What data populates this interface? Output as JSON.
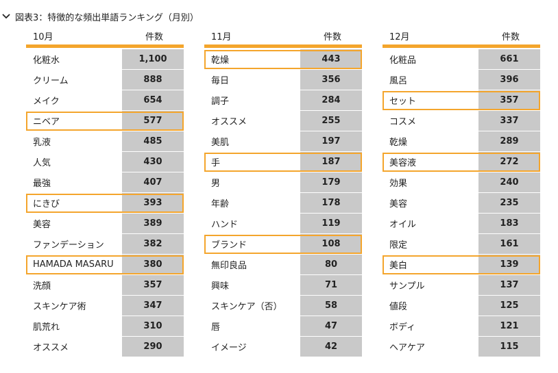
{
  "title": "図表3：特徴的な頻出単語ランキング（月別）",
  "tables": [
    {
      "month": "10月",
      "count_label": "件数",
      "rows": [
        {
          "word": "化粧水",
          "count": "1,100",
          "hl": false
        },
        {
          "word": "クリーム",
          "count": "888",
          "hl": false
        },
        {
          "word": "メイク",
          "count": "654",
          "hl": false
        },
        {
          "word": "ニベア",
          "count": "577",
          "hl": true
        },
        {
          "word": "乳液",
          "count": "485",
          "hl": false
        },
        {
          "word": "人気",
          "count": "430",
          "hl": false
        },
        {
          "word": "最強",
          "count": "407",
          "hl": false
        },
        {
          "word": "にきび",
          "count": "393",
          "hl": true
        },
        {
          "word": "美容",
          "count": "389",
          "hl": false
        },
        {
          "word": "ファンデーション",
          "count": "382",
          "hl": false
        },
        {
          "word": "HAMADA MASARU",
          "count": "380",
          "hl": true
        },
        {
          "word": "洗顔",
          "count": "357",
          "hl": false
        },
        {
          "word": "スキンケア術",
          "count": "347",
          "hl": false
        },
        {
          "word": "肌荒れ",
          "count": "310",
          "hl": false
        },
        {
          "word": "オススメ",
          "count": "290",
          "hl": false
        }
      ]
    },
    {
      "month": "11月",
      "count_label": "件数",
      "rows": [
        {
          "word": "乾燥",
          "count": "443",
          "hl": true
        },
        {
          "word": "毎日",
          "count": "356",
          "hl": false
        },
        {
          "word": "調子",
          "count": "284",
          "hl": false
        },
        {
          "word": "オススメ",
          "count": "255",
          "hl": false
        },
        {
          "word": "美肌",
          "count": "197",
          "hl": false
        },
        {
          "word": "手",
          "count": "187",
          "hl": true
        },
        {
          "word": "男",
          "count": "179",
          "hl": false
        },
        {
          "word": "年齢",
          "count": "178",
          "hl": false
        },
        {
          "word": "ハンド",
          "count": "119",
          "hl": false
        },
        {
          "word": "ブランド",
          "count": "108",
          "hl": true
        },
        {
          "word": "無印良品",
          "count": "80",
          "hl": false
        },
        {
          "word": "興味",
          "count": "71",
          "hl": false
        },
        {
          "word": "スキンケア（否）",
          "count": "58",
          "hl": false
        },
        {
          "word": "唇",
          "count": "47",
          "hl": false
        },
        {
          "word": "イメージ",
          "count": "42",
          "hl": false
        }
      ]
    },
    {
      "month": "12月",
      "count_label": "件数",
      "rows": [
        {
          "word": "化粧品",
          "count": "661",
          "hl": false
        },
        {
          "word": "風呂",
          "count": "396",
          "hl": false
        },
        {
          "word": "セット",
          "count": "357",
          "hl": true
        },
        {
          "word": "コスメ",
          "count": "337",
          "hl": false
        },
        {
          "word": "乾燥",
          "count": "289",
          "hl": false
        },
        {
          "word": "美容液",
          "count": "272",
          "hl": true
        },
        {
          "word": "効果",
          "count": "240",
          "hl": false
        },
        {
          "word": "美容",
          "count": "235",
          "hl": false
        },
        {
          "word": "オイル",
          "count": "183",
          "hl": false
        },
        {
          "word": "限定",
          "count": "161",
          "hl": false
        },
        {
          "word": "美白",
          "count": "139",
          "hl": true
        },
        {
          "word": "サンプル",
          "count": "137",
          "hl": false
        },
        {
          "word": "値段",
          "count": "125",
          "hl": false
        },
        {
          "word": "ボディ",
          "count": "121",
          "hl": false
        },
        {
          "word": "ヘアケア",
          "count": "115",
          "hl": false
        }
      ]
    }
  ],
  "colors": {
    "accent": "#f4a52c",
    "count_bg": "#c9c9c9"
  },
  "icons": {
    "title": "chevron-down-icon"
  }
}
